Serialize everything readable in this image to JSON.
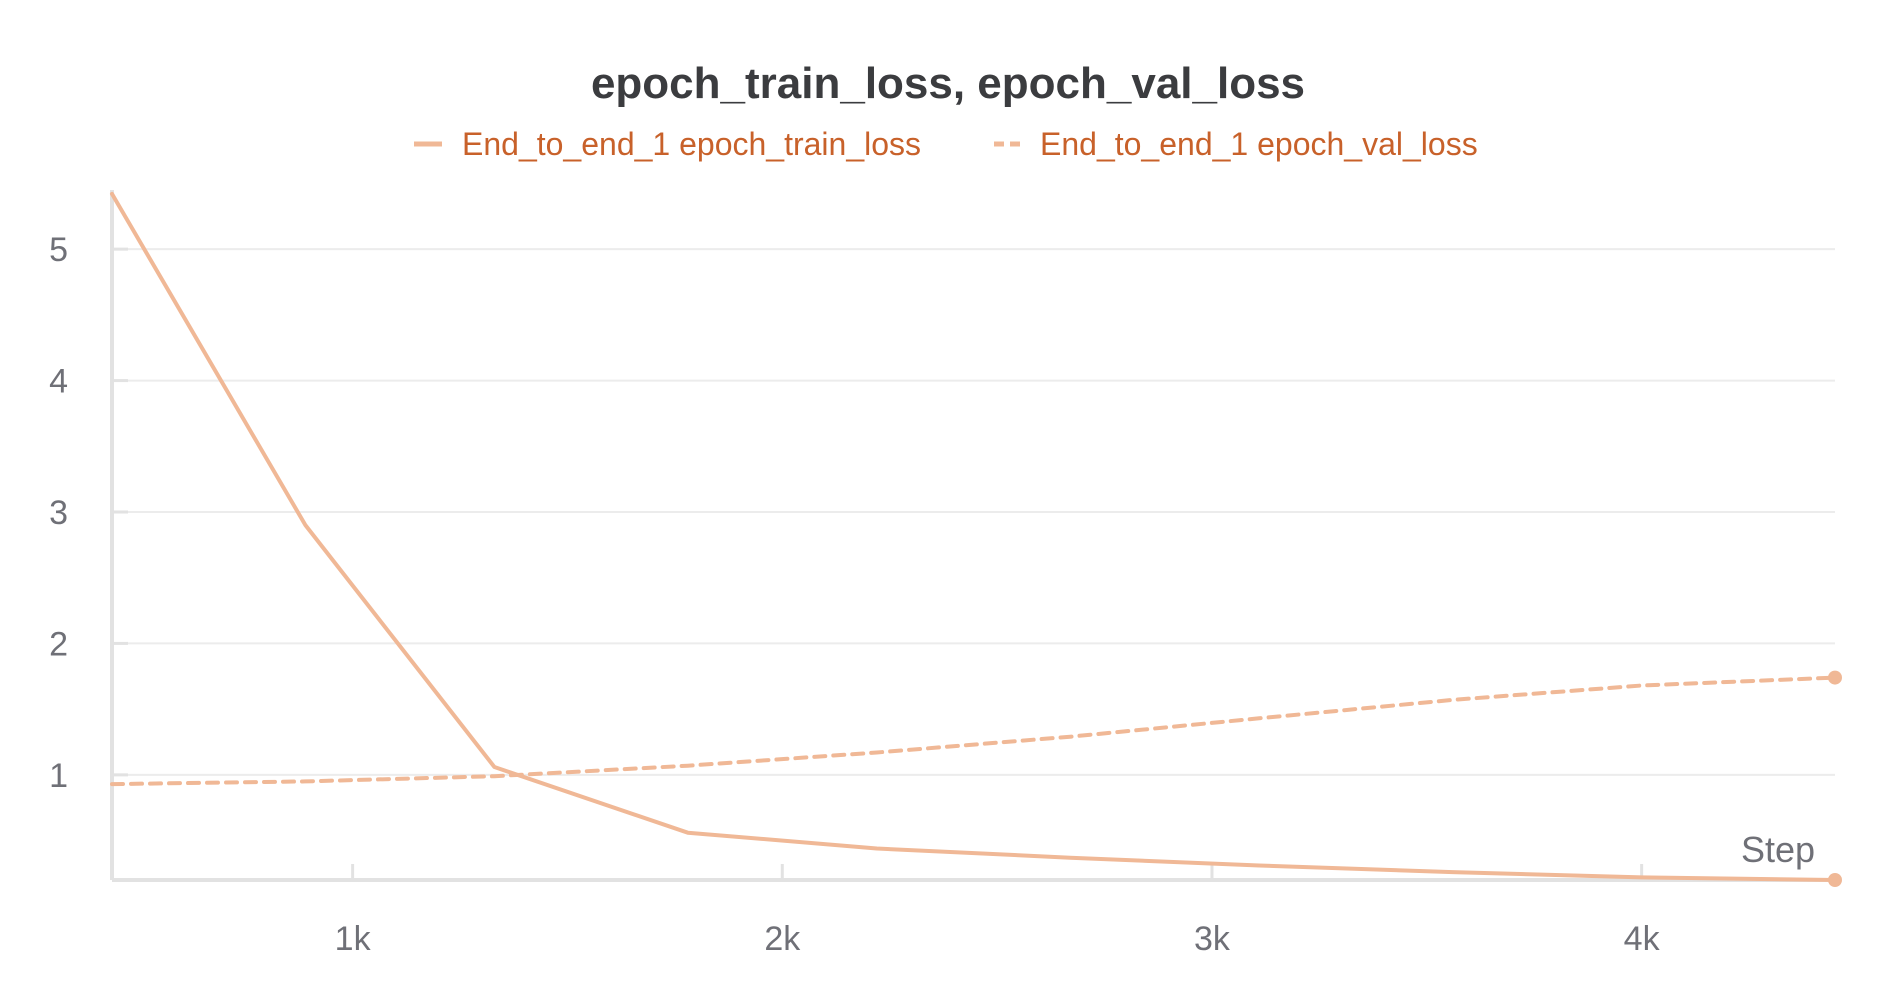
{
  "chart_data": {
    "type": "line",
    "title": "epoch_train_loss, epoch_val_loss",
    "xlabel": "Step",
    "ylabel": "",
    "xlim": [
      440,
      4450
    ],
    "ylim": [
      0.2,
      5.45
    ],
    "xticks": [
      1000,
      2000,
      3000,
      4000
    ],
    "xtick_labels": [
      "1k",
      "2k",
      "3k",
      "4k"
    ],
    "yticks": [
      1,
      2,
      3,
      4,
      5
    ],
    "ytick_labels": [
      "1",
      "2",
      "3",
      "4",
      "5"
    ],
    "grid": true,
    "legend_position": "top-center",
    "colors": {
      "series": "#f0b896",
      "legend_text": "#c8612a",
      "title": "#3b3c3f",
      "axis": "#e2e2e2",
      "grid": "#ececec",
      "tick_text": "#6f7077"
    },
    "series": [
      {
        "name": "End_to_end_1 epoch_train_loss",
        "style": "solid",
        "x": [
          440,
          890,
          1330,
          1780,
          2220,
          2670,
          3110,
          3560,
          4000,
          4450
        ],
        "y": [
          5.42,
          2.9,
          1.06,
          0.56,
          0.44,
          0.37,
          0.31,
          0.26,
          0.22,
          0.2
        ]
      },
      {
        "name": "End_to_end_1 epoch_val_loss",
        "style": "dashed",
        "x": [
          440,
          890,
          1330,
          1780,
          2220,
          2670,
          3110,
          3560,
          4000,
          4450
        ],
        "y": [
          0.93,
          0.95,
          0.99,
          1.07,
          1.17,
          1.29,
          1.43,
          1.57,
          1.68,
          1.74
        ]
      }
    ]
  }
}
